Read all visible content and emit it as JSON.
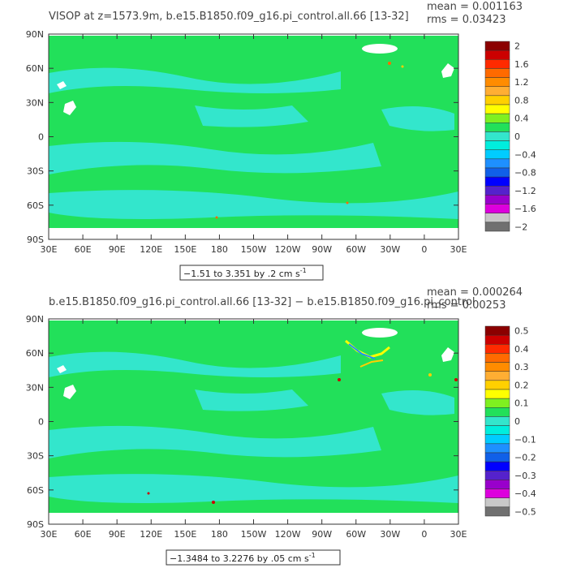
{
  "colors": {
    "land": "#ffffff",
    "zero": "#22e05a",
    "neg_small": "#33e6cc",
    "ice": "#ffffff"
  },
  "chart_data": [
    {
      "type": "heatmap",
      "title": "VISOP at z=1573.9m, b.e15.B1850.f09_g16.pi_control.all.66 [13-32]",
      "stats": {
        "mean": "mean = 0.001163",
        "rms": "rms = 0.03423"
      },
      "xticks": [
        "30E",
        "60E",
        "90E",
        "120E",
        "150E",
        "180",
        "150W",
        "120W",
        "90W",
        "60W",
        "30W",
        "0",
        "30E"
      ],
      "yticks": [
        "90N",
        "60N",
        "30N",
        "0",
        "30S",
        "60S",
        "90S"
      ],
      "xlim": [
        30,
        390
      ],
      "ylim": [
        -90,
        90
      ],
      "range_label": "−1.51 to 3.351 by .2 cm s",
      "range_sup": "-1",
      "colorbar": {
        "labels": [
          "2",
          "1.6",
          "1.2",
          "0.8",
          "0.4",
          "0",
          "−0.4",
          "−0.8",
          "−1.2",
          "−1.6",
          "−2"
        ],
        "colors": [
          "#8b0000",
          "#cc0000",
          "#ff2a00",
          "#ff6a00",
          "#ff8c00",
          "#ffae33",
          "#ffd000",
          "#ffff00",
          "#7ff020",
          "#22e05a",
          "#33e6cc",
          "#00eedd",
          "#00ccff",
          "#1e90ff",
          "#1060e8",
          "#0000ff",
          "#5522cc",
          "#9900cc",
          "#dd00dd",
          "#c8c8c8",
          "#707070"
        ]
      }
    },
    {
      "type": "heatmap",
      "title": "b.e15.B1850.f09_g16.pi_control.all.66 [13-32] − b.e15.B1850.f09_g16.pi_control",
      "stats": {
        "mean": "mean = 0.000264",
        "rms": "rms = 0.00253"
      },
      "xticks": [
        "30E",
        "60E",
        "90E",
        "120E",
        "150E",
        "180",
        "150W",
        "120W",
        "90W",
        "60W",
        "30W",
        "0",
        "30E"
      ],
      "yticks": [
        "90N",
        "60N",
        "30N",
        "0",
        "30S",
        "60S",
        "90S"
      ],
      "xlim": [
        30,
        390
      ],
      "ylim": [
        -90,
        90
      ],
      "range_label": "−1.3484 to 3.2276 by .05 cm s",
      "range_sup": "-1",
      "colorbar": {
        "labels": [
          "0.5",
          "0.4",
          "0.3",
          "0.2",
          "0.1",
          "0",
          "−0.1",
          "−0.2",
          "−0.3",
          "−0.4",
          "−0.5"
        ],
        "colors": [
          "#8b0000",
          "#cc0000",
          "#ff2a00",
          "#ff6a00",
          "#ff8c00",
          "#ffae33",
          "#ffd000",
          "#ffff00",
          "#7ff020",
          "#22e05a",
          "#33e6cc",
          "#00eedd",
          "#00ccff",
          "#1e90ff",
          "#1060e8",
          "#0000ff",
          "#5522cc",
          "#9900cc",
          "#dd00dd",
          "#c8c8c8",
          "#707070"
        ]
      }
    }
  ]
}
